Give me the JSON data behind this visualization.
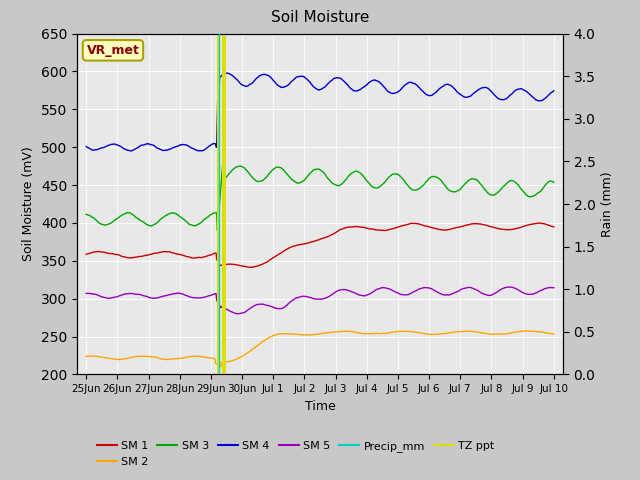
{
  "title": "Soil Moisture",
  "xlabel": "Time",
  "ylabel_left": "Soil Moisture (mV)",
  "ylabel_right": "Rain (mm)",
  "ylim_left": [
    200,
    650
  ],
  "ylim_right": [
    0.0,
    4.0
  ],
  "yticks_left": [
    200,
    250,
    300,
    350,
    400,
    450,
    500,
    550,
    600,
    650
  ],
  "yticks_right": [
    0.0,
    0.5,
    1.0,
    1.5,
    2.0,
    2.5,
    3.0,
    3.5,
    4.0
  ],
  "annotation_box": {
    "text": "VR_met",
    "color": "#8b0000",
    "bg": "#ffffc0",
    "edge": "#aaa000"
  },
  "sm1_color": "#cc0000",
  "sm2_color": "#ffa500",
  "sm3_color": "#00aa00",
  "sm4_color": "#0000cc",
  "sm5_color": "#9900bb",
  "precip_color": "#00cccc",
  "tzppt_color": "#dddd00",
  "spike_day": 4.25,
  "n_points": 800,
  "fig_bg": "#c8c8c8",
  "plot_bg": "#e8e8e8",
  "grid_color": "#ffffff"
}
